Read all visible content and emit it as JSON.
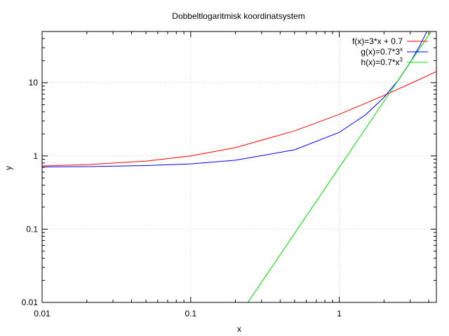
{
  "chart_data": {
    "type": "line",
    "title": "Dobbeltlogaritmisk koordinatsystem",
    "xlabel": "x",
    "ylabel": "y",
    "xscale": "log",
    "yscale": "log",
    "xlim": [
      0.01,
      4.5
    ],
    "ylim": [
      0.01,
      50
    ],
    "grid": true,
    "legend_position": "top-right",
    "x_ticks": [
      {
        "value": 0.01,
        "label": "0.01"
      },
      {
        "value": 0.1,
        "label": "0.1"
      },
      {
        "value": 1,
        "label": "1"
      }
    ],
    "y_ticks": [
      {
        "value": 0.01,
        "label": "0.01"
      },
      {
        "value": 0.1,
        "label": "0.1"
      },
      {
        "value": 1,
        "label": "1"
      },
      {
        "value": 10,
        "label": "10"
      }
    ],
    "series": [
      {
        "name_base": "f(x)=3*x + 0.7",
        "name_sup": "",
        "color": "#ff0000",
        "x": [
          0.01,
          0.02,
          0.05,
          0.1,
          0.2,
          0.5,
          1,
          2,
          3,
          4.5
        ],
        "y": [
          0.73,
          0.76,
          0.85,
          1.0,
          1.3,
          2.2,
          3.7,
          6.7,
          9.7,
          14.2
        ]
      },
      {
        "name_base": "g(x)=0.7*3",
        "name_sup": "x",
        "color": "#0000ff",
        "x": [
          0.01,
          0.02,
          0.05,
          0.1,
          0.2,
          0.5,
          1,
          1.5,
          2,
          2.5,
          3,
          3.5,
          4,
          4.1
        ],
        "y": [
          0.708,
          0.715,
          0.739,
          0.779,
          0.873,
          1.212,
          2.1,
          3.64,
          6.3,
          10.91,
          18.9,
          32.7,
          56.7,
          61.3
        ]
      },
      {
        "name_base": "h(x)=0.7*x",
        "name_sup": "3",
        "color": "#00dd00",
        "x": [
          0.24,
          0.3,
          0.5,
          1,
          1.5,
          2,
          2.5,
          3,
          3.5,
          4,
          4.2
        ],
        "y": [
          0.0097,
          0.0189,
          0.0875,
          0.7,
          2.36,
          5.6,
          10.94,
          18.9,
          30.0,
          44.8,
          51.9
        ]
      }
    ]
  }
}
